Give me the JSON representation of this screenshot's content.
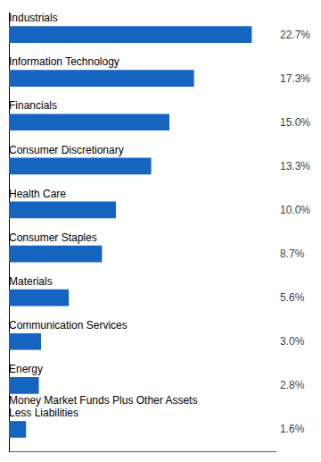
{
  "chart_data": {
    "type": "bar",
    "orientation": "horizontal",
    "categories": [
      "Industrials",
      "Information Technology",
      "Financials",
      "Consumer Discretionary",
      "Health Care",
      "Consumer Staples",
      "Materials",
      "Communication Services",
      "Energy",
      "Money Market Funds Plus Other Assets\nLess Liabilities"
    ],
    "values": [
      22.7,
      17.3,
      15.0,
      13.3,
      10.0,
      8.7,
      5.6,
      3.0,
      2.8,
      1.6
    ],
    "value_labels": [
      "22.7%",
      "17.3%",
      "15.0%",
      "13.3%",
      "10.0%",
      "8.7%",
      "5.6%",
      "3.0%",
      "2.8%",
      "1.6%"
    ],
    "data_labels": true,
    "color": "#1565C0",
    "xlim": [
      0,
      25
    ],
    "tick_labels": false,
    "grid": false
  }
}
